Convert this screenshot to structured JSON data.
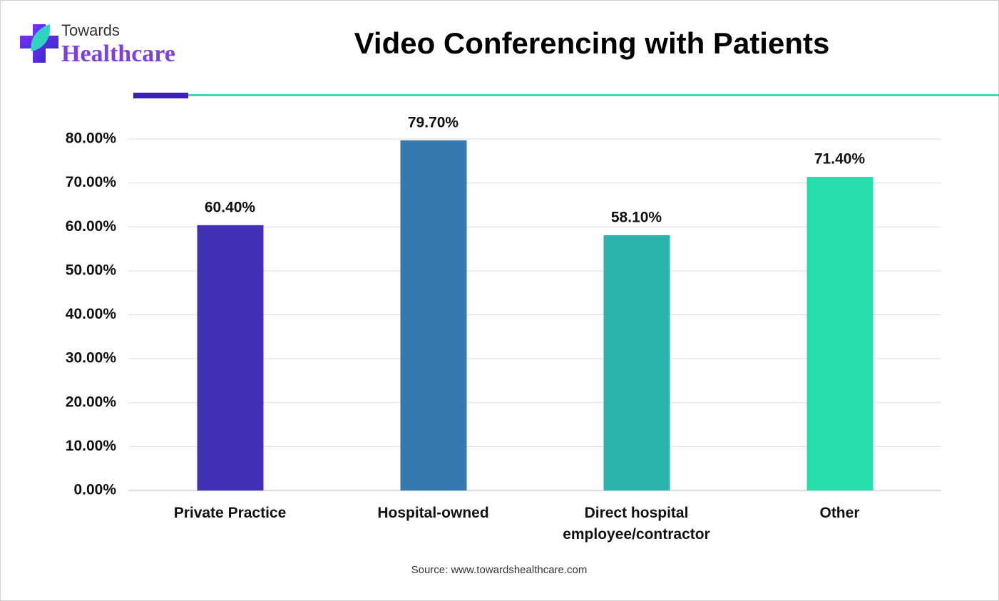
{
  "logo": {
    "line1": "Towards",
    "line2": "Healthcare"
  },
  "chart_data": {
    "type": "bar",
    "title": "Video Conferencing with Patients",
    "categories": [
      "Private Practice",
      "Hospital-owned",
      "Direct hospital employee/contractor",
      "Other"
    ],
    "values": [
      60.4,
      79.7,
      58.1,
      71.4
    ],
    "value_labels": [
      "60.40%",
      "79.70%",
      "58.10%",
      "71.40%"
    ],
    "colors": [
      "#4132b5",
      "#3479b0",
      "#2bb2ab",
      "#25deab"
    ],
    "ylim": [
      0,
      80
    ],
    "yticks": [
      {
        "value": 0,
        "label": "0.00%"
      },
      {
        "value": 10,
        "label": "10.00%"
      },
      {
        "value": 20,
        "label": "20.00%"
      },
      {
        "value": 30,
        "label": "30.00%"
      },
      {
        "value": 40,
        "label": "40.00%"
      },
      {
        "value": 50,
        "label": "50.00%"
      },
      {
        "value": 60,
        "label": "60.00%"
      },
      {
        "value": 70,
        "label": "70.00%"
      },
      {
        "value": 80,
        "label": "80.00%"
      }
    ],
    "grid": true,
    "source": "Source: www.towardshealthcare.com"
  }
}
